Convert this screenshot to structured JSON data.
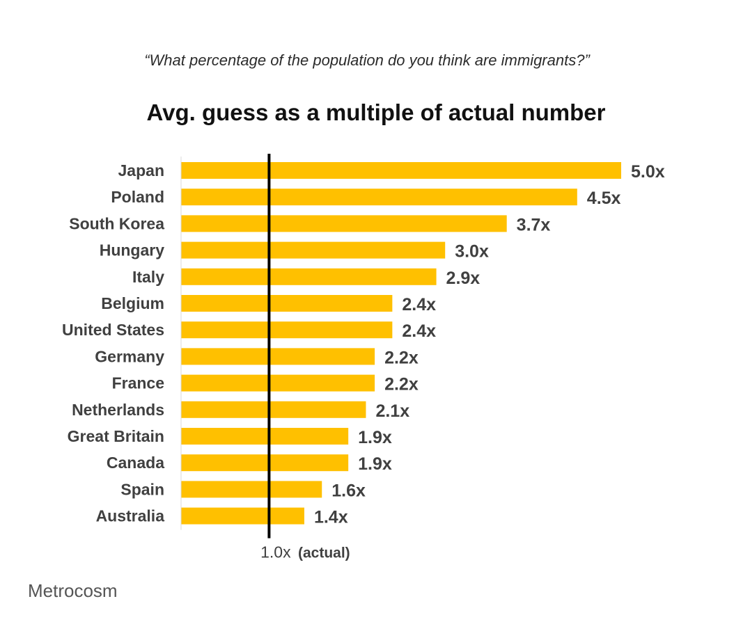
{
  "subtitle": "“What percentage of the population do you think are immigrants?”",
  "source": "Metrocosm",
  "colors": {
    "bar": "#FFC000",
    "reference_line": "#000000",
    "label_text": "#404040"
  },
  "chart_data": {
    "type": "bar",
    "orientation": "horizontal",
    "title": "Avg. guess as a multiple of actual number",
    "categories": [
      "Japan",
      "Poland",
      "South Korea",
      "Hungary",
      "Italy",
      "Belgium",
      "United States",
      "Germany",
      "France",
      "Netherlands",
      "Great Britain",
      "Canada",
      "Spain",
      "Australia"
    ],
    "values": [
      5.0,
      4.5,
      3.7,
      3.0,
      2.9,
      2.4,
      2.4,
      2.2,
      2.2,
      2.1,
      1.9,
      1.9,
      1.6,
      1.4
    ],
    "data_labels": [
      "5.0x",
      "4.5x",
      "3.7x",
      "3.0x",
      "2.9x",
      "2.4x",
      "2.4x",
      "2.2x",
      "2.2x",
      "2.1x",
      "1.9x",
      "1.9x",
      "1.6x",
      "1.4x"
    ],
    "xlim": [
      0,
      5.0
    ],
    "reference_line": {
      "value": 1.0,
      "label": "1.0x",
      "label_note": "(actual)"
    },
    "grid": false,
    "legend": "none"
  }
}
